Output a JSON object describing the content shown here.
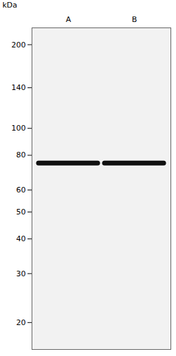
{
  "chart_data": {
    "type": "blot",
    "ylabel": "kDa",
    "categories": [
      "A",
      "B"
    ],
    "values": [
      75,
      75
    ],
    "color": "#111111",
    "log": "y",
    "ylim": [
      16,
      230
    ],
    "yticks": [
      200,
      140,
      100,
      80,
      60,
      50,
      40,
      30,
      20
    ],
    "grid": false
  }
}
